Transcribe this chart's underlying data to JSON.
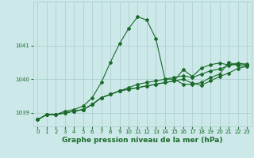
{
  "title": "Graphe pression niveau de la mer (hPa)",
  "background_color": "#cce8e8",
  "grid_color": "#aacccc",
  "line_color": "#1a6b2a",
  "xlim": [
    -0.5,
    23.5
  ],
  "ylim": [
    1038.6,
    1042.3
  ],
  "xticks": [
    0,
    1,
    2,
    3,
    4,
    5,
    6,
    7,
    8,
    9,
    10,
    11,
    12,
    13,
    14,
    15,
    16,
    17,
    18,
    19,
    20,
    21,
    22,
    23
  ],
  "yticks": [
    1039,
    1040,
    1041
  ],
  "series": [
    [
      1038.8,
      1038.95,
      1038.95,
      1039.05,
      1039.1,
      1039.2,
      1039.45,
      1039.9,
      1040.5,
      1041.05,
      1041.5,
      1041.85,
      1041.75,
      1041.2,
      1040.0,
      1040.0,
      1039.85,
      1039.85,
      1039.9,
      1040.05,
      1040.15,
      1040.5,
      1040.4,
      1040.4
    ],
    [
      1038.8,
      1038.95,
      1038.95,
      1039.0,
      1039.05,
      1039.1,
      1039.25,
      1039.45,
      1039.55,
      1039.65,
      1039.75,
      1039.85,
      1039.9,
      1039.95,
      1040.0,
      1040.05,
      1040.1,
      1040.05,
      1040.15,
      1040.25,
      1040.3,
      1040.4,
      1040.45,
      1040.45
    ],
    [
      1038.8,
      1038.95,
      1038.95,
      1039.0,
      1039.05,
      1039.1,
      1039.25,
      1039.45,
      1039.55,
      1039.65,
      1039.7,
      1039.75,
      1039.8,
      1039.85,
      1039.9,
      1039.95,
      1040.0,
      1039.88,
      1039.82,
      1039.95,
      1040.08,
      1040.18,
      1040.32,
      1040.38
    ],
    [
      1038.8,
      1038.95,
      1038.95,
      1039.0,
      1039.05,
      1039.1,
      1039.25,
      1039.45,
      1039.55,
      1039.65,
      1039.7,
      1039.75,
      1039.8,
      1039.85,
      1039.9,
      1039.95,
      1040.28,
      1040.08,
      1040.33,
      1040.43,
      1040.48,
      1040.42,
      1040.48,
      1040.43
    ]
  ],
  "marker": "D",
  "markersize": 2.0,
  "linewidth": 0.8,
  "title_fontsize": 6.5,
  "tick_fontsize": 5.0,
  "ylabel_fontsize": 6.0
}
